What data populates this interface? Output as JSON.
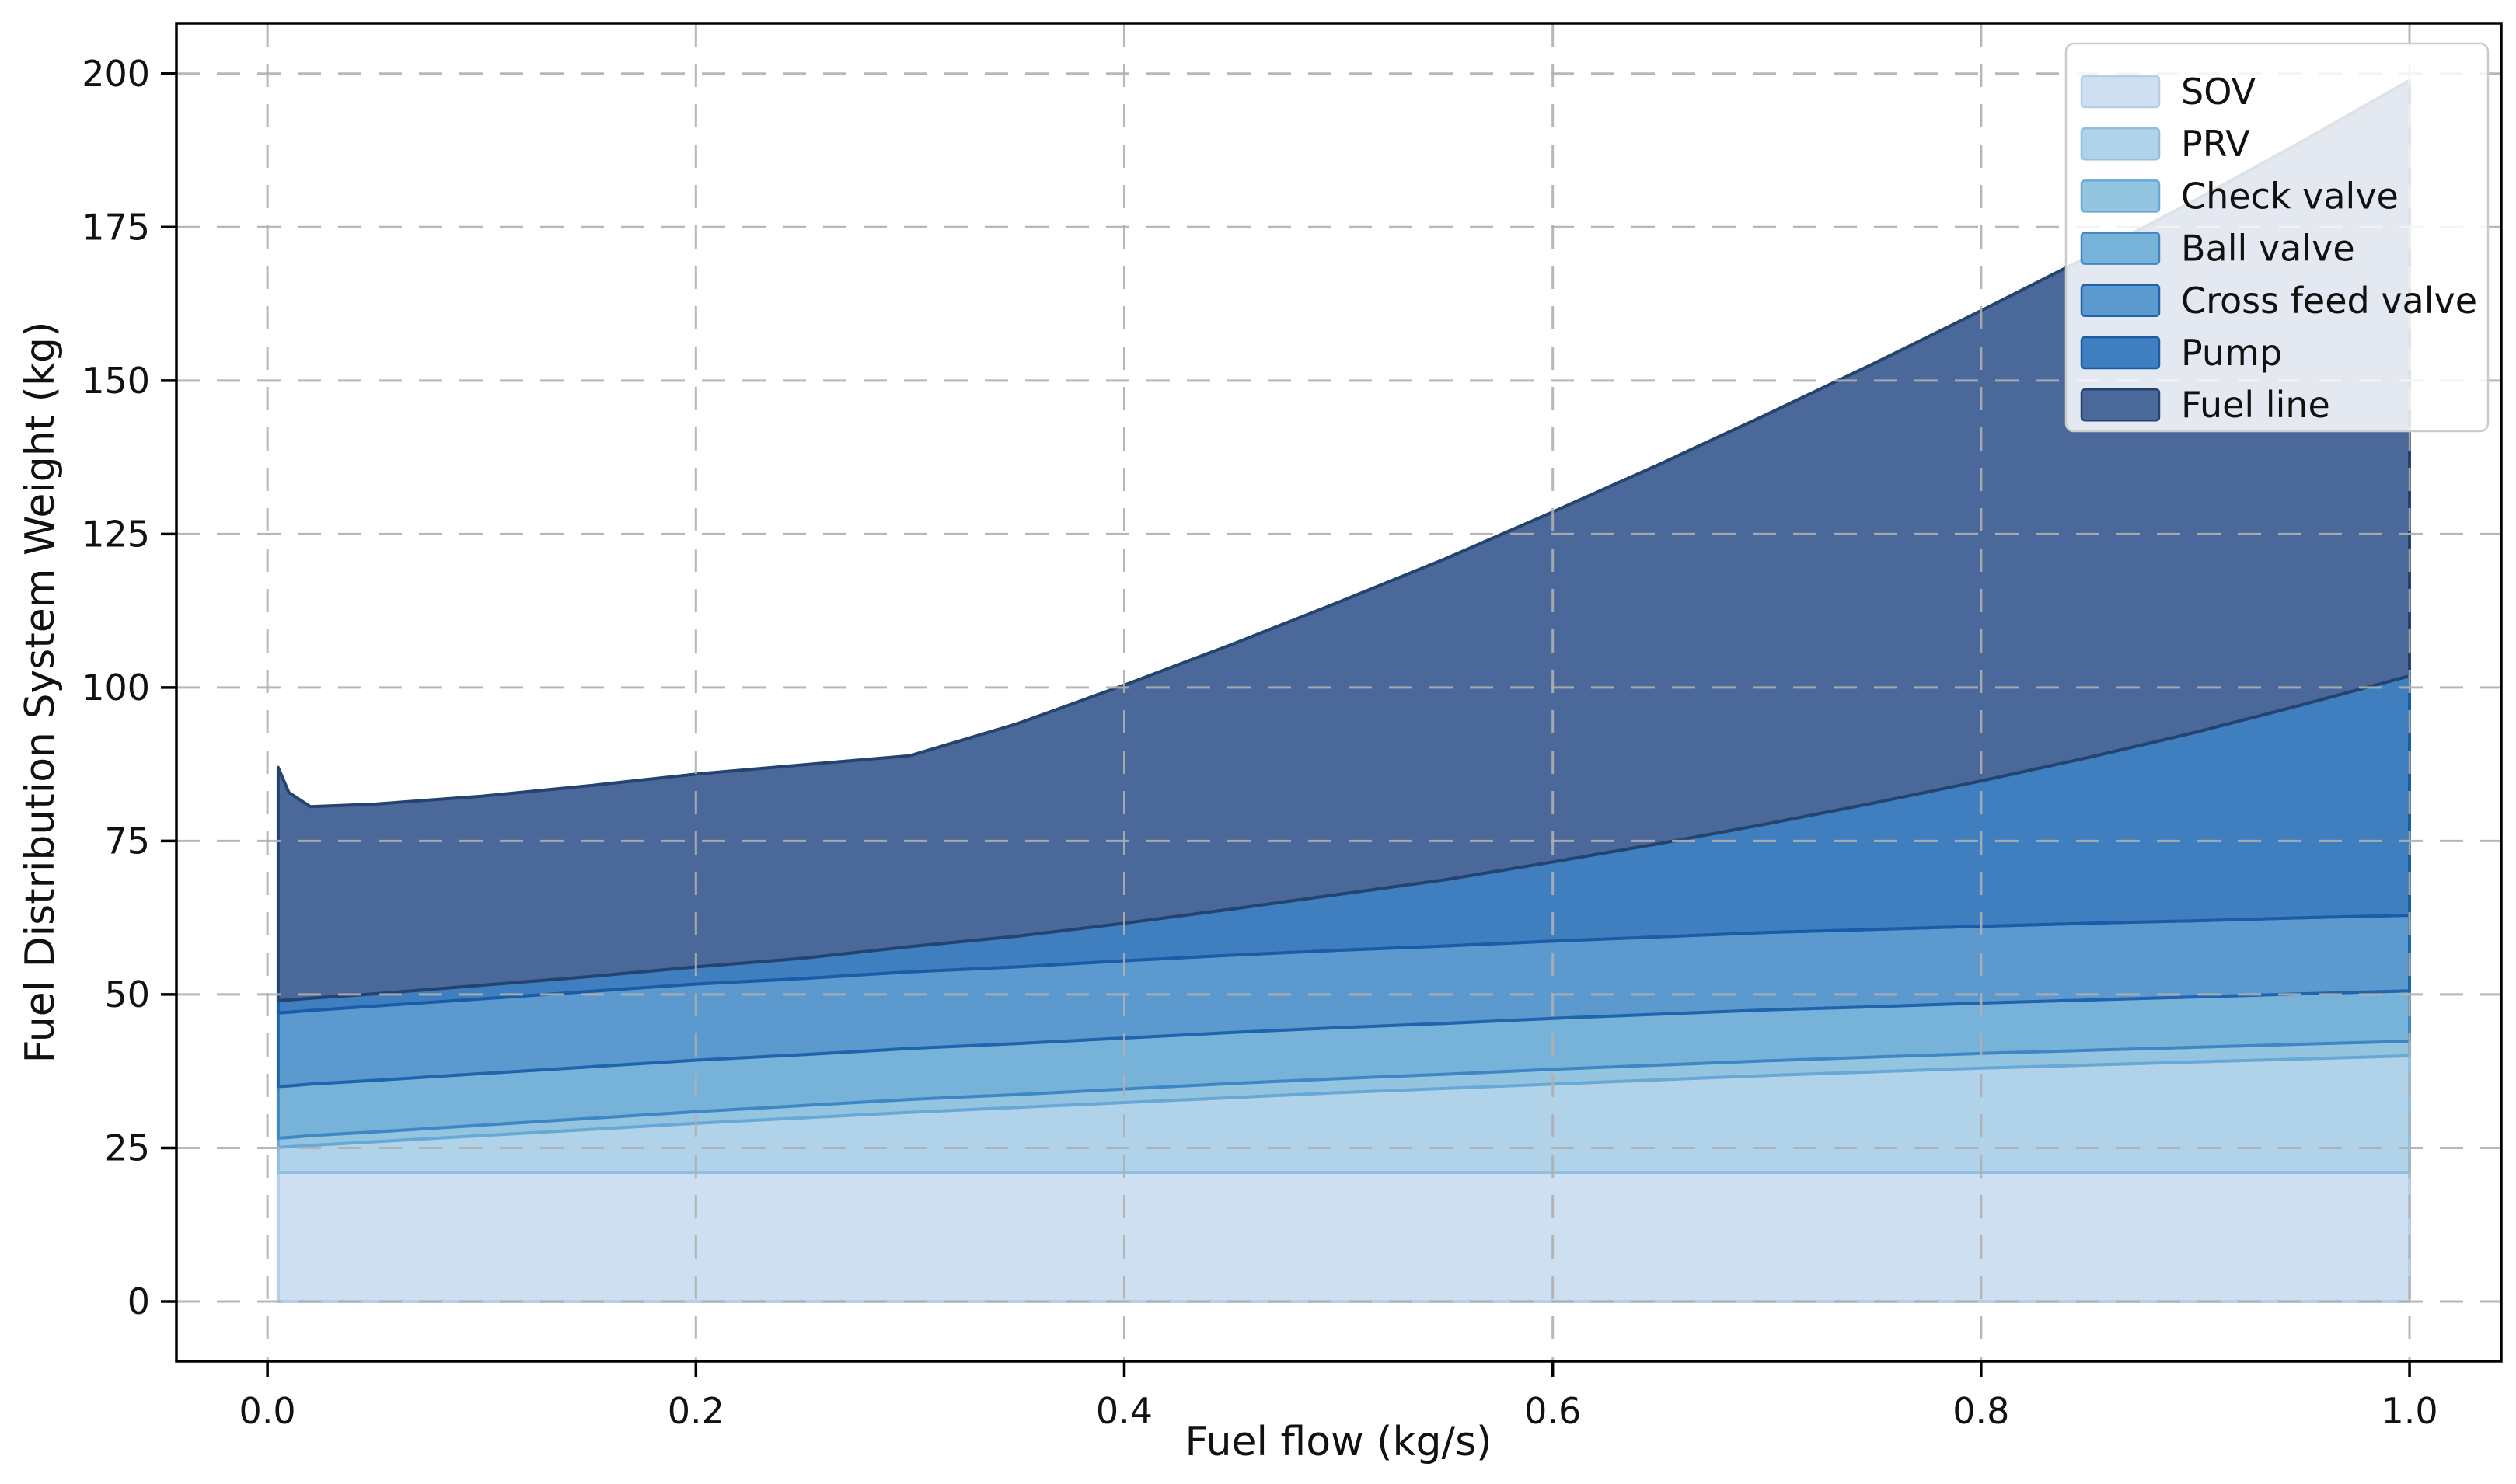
{
  "figure": {
    "background": "#ffffff"
  },
  "axes": {
    "xlabel": "Fuel flow (kg/s)",
    "ylabel": "Fuel Distribution System Weight (kg)"
  },
  "chart_data": {
    "type": "area",
    "stacked": true,
    "title": "",
    "xlabel": "Fuel flow (kg/s)",
    "ylabel": "Fuel Distribution System Weight (kg)",
    "grid": {
      "on": true,
      "linestyle": "dashed",
      "color": "#b0b0b0"
    },
    "legend_position": "upper right",
    "xlim": [
      -0.0425,
      1.0428
    ],
    "ylim": [
      -9.75,
      208.2
    ],
    "xtick_values": [
      0.0,
      0.2,
      0.4,
      0.6,
      0.8,
      1.0
    ],
    "xtick_labels": [
      "0.0",
      "0.2",
      "0.4",
      "0.6",
      "0.8",
      "1.0"
    ],
    "ytick_values": [
      0,
      25,
      50,
      75,
      100,
      125,
      150,
      175,
      200
    ],
    "ytick_labels": [
      "0",
      "25",
      "50",
      "75",
      "100",
      "125",
      "150",
      "175",
      "200"
    ],
    "x": [
      0.005,
      0.01,
      0.02,
      0.05,
      0.1,
      0.15,
      0.2,
      0.25,
      0.3,
      0.35,
      0.4,
      0.45,
      0.5,
      0.55,
      0.6,
      0.65,
      0.7,
      0.75,
      0.8,
      0.85,
      0.9,
      0.95,
      1.0
    ],
    "series": [
      {
        "name": "SOV",
        "fill": "#cddff1",
        "edge": "#b5cfe9",
        "values": [
          21,
          21,
          21,
          21,
          21,
          21,
          21,
          21,
          21,
          21,
          21,
          21,
          21,
          21,
          21,
          21,
          21,
          21,
          21,
          21,
          21,
          21,
          21
        ]
      },
      {
        "name": "PRV",
        "fill": "#b0d3ea",
        "edge": "#8fc0e0",
        "values": [
          4.1,
          4.2,
          4.4,
          5.0,
          6.0,
          7.0,
          8.0,
          8.9,
          9.8,
          10.6,
          11.4,
          12.2,
          13.0,
          13.7,
          14.4,
          15.1,
          15.8,
          16.4,
          17.0,
          17.5,
          18.0,
          18.5,
          19.0
        ]
      },
      {
        "name": "Check valve",
        "fill": "#93c5e1",
        "edge": "#68a8d4",
        "values": [
          1.5,
          1.5,
          1.6,
          1.6,
          1.7,
          1.8,
          1.9,
          2.0,
          2.1,
          2.1,
          2.2,
          2.3,
          2.3,
          2.3,
          2.4,
          2.4,
          2.4,
          2.4,
          2.4,
          2.4,
          2.4,
          2.4,
          2.4
        ]
      },
      {
        "name": "Ball valve",
        "fill": "#77b3d8",
        "edge": "#3f87c4",
        "values": [
          8.4,
          8.4,
          8.4,
          8.4,
          8.4,
          8.4,
          8.4,
          8.3,
          8.3,
          8.3,
          8.3,
          8.3,
          8.3,
          8.3,
          8.3,
          8.3,
          8.3,
          8.2,
          8.2,
          8.2,
          8.2,
          8.2,
          8.2
        ]
      },
      {
        "name": "Cross feed valve",
        "fill": "#5b99ce",
        "edge": "#1f64ad",
        "values": [
          12.0,
          12.0,
          12.0,
          12.1,
          12.2,
          12.3,
          12.4,
          12.4,
          12.5,
          12.5,
          12.6,
          12.6,
          12.6,
          12.6,
          12.6,
          12.6,
          12.6,
          12.6,
          12.5,
          12.5,
          12.4,
          12.4,
          12.3
        ]
      },
      {
        "name": "Pump",
        "fill": "#3f7ebf",
        "edge": "#1b5ca6",
        "values": [
          2.0,
          2.0,
          2.0,
          2.0,
          2.2,
          2.4,
          2.8,
          3.3,
          4.1,
          5.0,
          6.1,
          7.5,
          9.1,
          10.8,
          12.9,
          15.2,
          17.7,
          20.6,
          23.7,
          27.0,
          30.7,
          34.7,
          39.0
        ]
      },
      {
        "name": "Fuel line",
        "fill": "#4b689a",
        "edge": "#24436e",
        "values": [
          38.0,
          33.8,
          31.2,
          30.9,
          30.8,
          31.1,
          31.4,
          31.5,
          31.1,
          34.6,
          38.8,
          43.1,
          47.6,
          52.3,
          57.0,
          61.8,
          66.7,
          71.6,
          76.6,
          81.6,
          86.7,
          91.8,
          97.0
        ]
      }
    ],
    "legend_entries": [
      "SOV",
      "PRV",
      "Check valve",
      "Ball valve",
      "Cross feed valve",
      "Pump",
      "Fuel line"
    ]
  }
}
